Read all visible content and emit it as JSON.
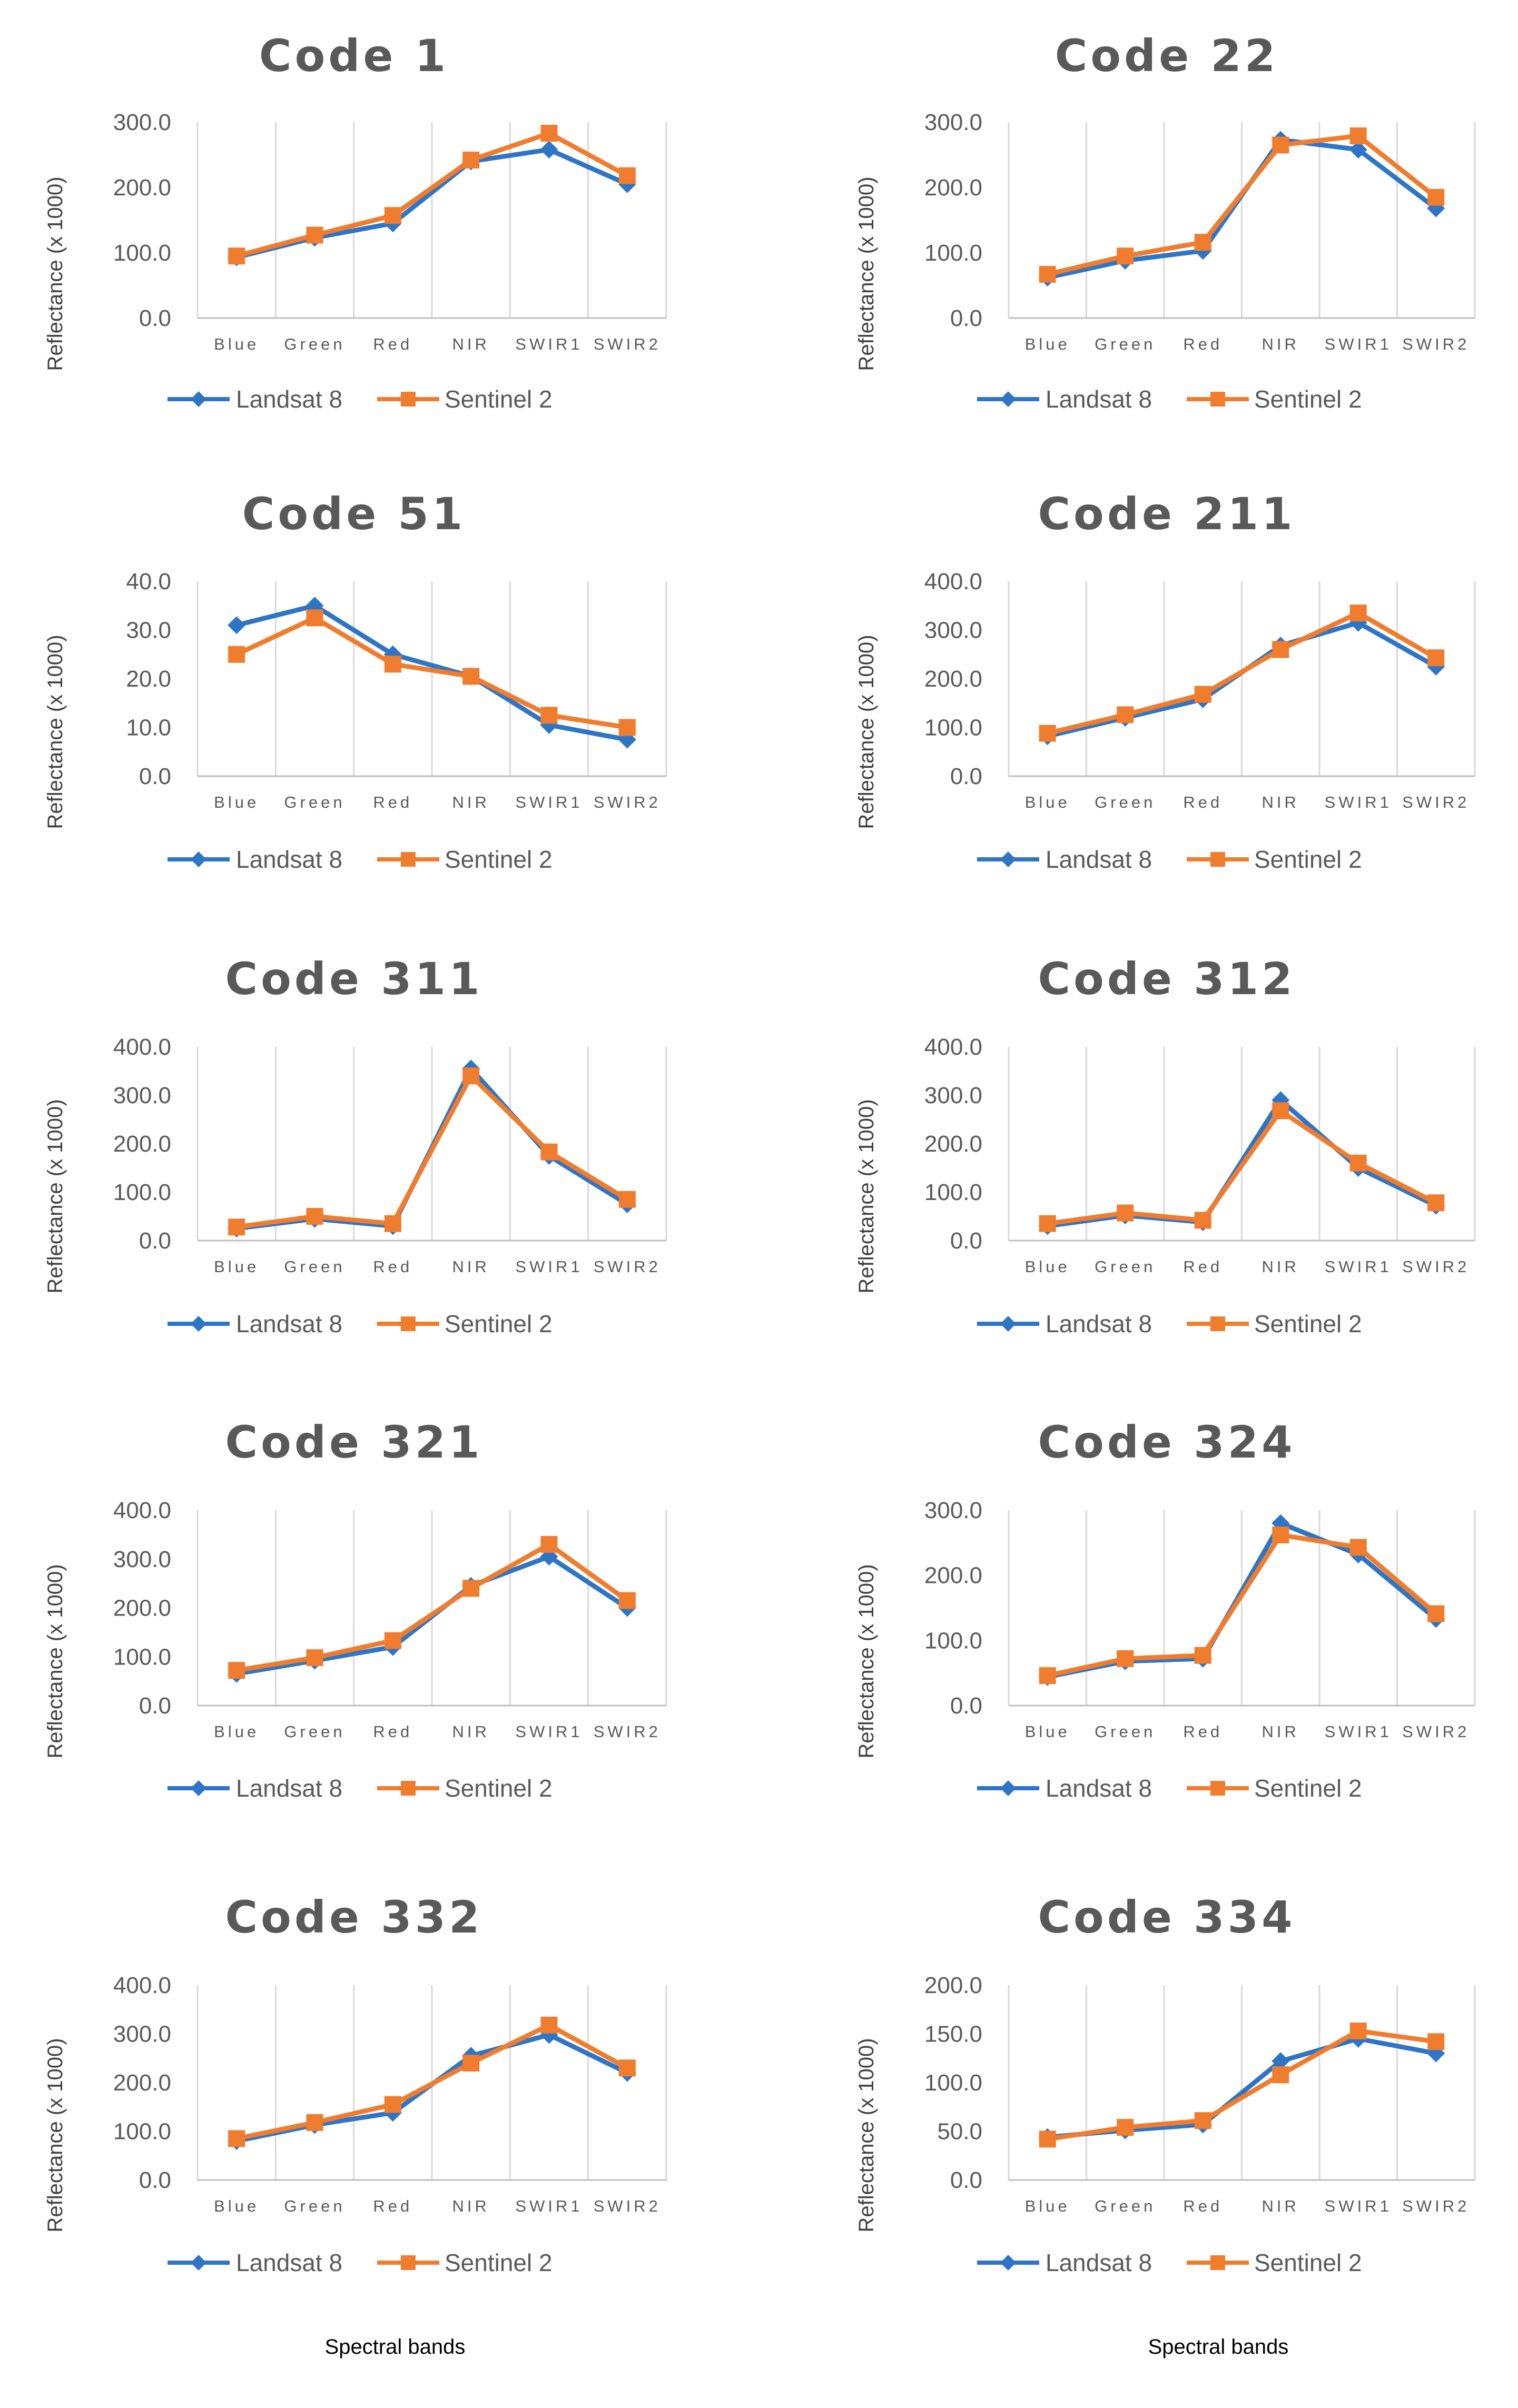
{
  "colors": {
    "landsat": "#2E75C6",
    "sentinel": "#F07C2E",
    "grid": "#D9D9D9",
    "axis": "#BFBFBF"
  },
  "xlabel": "Spectral bands",
  "legend": [
    "Landsat 8",
    "Sentinel 2"
  ],
  "chart_data": [
    {
      "type": "line",
      "title": "Code 1",
      "ylabel": "Reflectance (x 1000)",
      "categories": [
        "Blue",
        "Green",
        "Red",
        "NIR",
        "SWIR1",
        "SWIR2"
      ],
      "ylim": [
        0,
        300
      ],
      "yticks": [
        "0.0",
        "100.0",
        "200.0",
        "300.0"
      ],
      "series": [
        {
          "name": "Landsat 8",
          "values": [
            93,
            123,
            145,
            240,
            258,
            205
          ]
        },
        {
          "name": "Sentinel 2",
          "values": [
            95,
            127,
            157,
            242,
            283,
            218
          ]
        }
      ]
    },
    {
      "type": "line",
      "title": "Code 22",
      "ylabel": "Reflectance (x 1000)",
      "categories": [
        "Blue",
        "Green",
        "Red",
        "NIR",
        "SWIR1",
        "SWIR2"
      ],
      "ylim": [
        0,
        300
      ],
      "yticks": [
        "0.0",
        "100.0",
        "200.0",
        "300.0"
      ],
      "series": [
        {
          "name": "Landsat 8",
          "values": [
            62,
            88,
            103,
            273,
            258,
            168
          ]
        },
        {
          "name": "Sentinel 2",
          "values": [
            67,
            95,
            116,
            265,
            279,
            185
          ]
        }
      ]
    },
    {
      "type": "line",
      "title": "Code 51",
      "ylabel": "Reflectance (x 1000)",
      "categories": [
        "Blue",
        "Green",
        "Red",
        "NIR",
        "SWIR1",
        "SWIR2"
      ],
      "ylim": [
        0,
        40
      ],
      "yticks": [
        "0.0",
        "10.0",
        "20.0",
        "30.0",
        "40.0"
      ],
      "series": [
        {
          "name": "Landsat 8",
          "values": [
            31,
            35,
            25,
            20.5,
            10.5,
            7.5
          ]
        },
        {
          "name": "Sentinel 2",
          "values": [
            25,
            32.5,
            23,
            20.5,
            12.5,
            10
          ]
        }
      ]
    },
    {
      "type": "line",
      "title": "Code 211",
      "ylabel": "Reflectance (x 1000)",
      "categories": [
        "Blue",
        "Green",
        "Red",
        "NIR",
        "SWIR1",
        "SWIR2"
      ],
      "ylim": [
        0,
        400
      ],
      "yticks": [
        "0.0",
        "100.0",
        "200.0",
        "300.0",
        "400.0"
      ],
      "series": [
        {
          "name": "Landsat 8",
          "values": [
            82,
            120,
            158,
            268,
            315,
            225
          ]
        },
        {
          "name": "Sentinel 2",
          "values": [
            88,
            126,
            168,
            260,
            335,
            243
          ]
        }
      ]
    },
    {
      "type": "line",
      "title": "Code 311",
      "ylabel": "Reflectance (x 1000)",
      "categories": [
        "Blue",
        "Green",
        "Red",
        "NIR",
        "SWIR1",
        "SWIR2"
      ],
      "ylim": [
        0,
        400
      ],
      "yticks": [
        "0.0",
        "100.0",
        "200.0",
        "300.0",
        "400.0"
      ],
      "series": [
        {
          "name": "Landsat 8",
          "values": [
            25,
            45,
            30,
            355,
            175,
            75
          ]
        },
        {
          "name": "Sentinel 2",
          "values": [
            28,
            50,
            35,
            340,
            183,
            85
          ]
        }
      ]
    },
    {
      "type": "line",
      "title": "Code 312",
      "ylabel": "Reflectance (x 1000)",
      "categories": [
        "Blue",
        "Green",
        "Red",
        "NIR",
        "SWIR1",
        "SWIR2"
      ],
      "ylim": [
        0,
        400
      ],
      "yticks": [
        "0.0",
        "100.0",
        "200.0",
        "300.0",
        "400.0"
      ],
      "series": [
        {
          "name": "Landsat 8",
          "values": [
            30,
            52,
            38,
            290,
            150,
            72
          ]
        },
        {
          "name": "Sentinel 2",
          "values": [
            35,
            57,
            42,
            268,
            160,
            78
          ]
        }
      ]
    },
    {
      "type": "line",
      "title": "Code 321",
      "ylabel": "Reflectance (x 1000)",
      "categories": [
        "Blue",
        "Green",
        "Red",
        "NIR",
        "SWIR1",
        "SWIR2"
      ],
      "ylim": [
        0,
        400
      ],
      "yticks": [
        "0.0",
        "100.0",
        "200.0",
        "300.0",
        "400.0"
      ],
      "series": [
        {
          "name": "Landsat 8",
          "values": [
            65,
            92,
            120,
            245,
            305,
            200
          ]
        },
        {
          "name": "Sentinel 2",
          "values": [
            72,
            98,
            133,
            240,
            330,
            215
          ]
        }
      ]
    },
    {
      "type": "line",
      "title": "Code 324",
      "ylabel": "Reflectance (x 1000)",
      "categories": [
        "Blue",
        "Green",
        "Red",
        "NIR",
        "SWIR1",
        "SWIR2"
      ],
      "ylim": [
        0,
        300
      ],
      "yticks": [
        "0.0",
        "100.0",
        "200.0",
        "300.0"
      ],
      "series": [
        {
          "name": "Landsat 8",
          "values": [
            44,
            68,
            72,
            280,
            232,
            133
          ]
        },
        {
          "name": "Sentinel 2",
          "values": [
            46,
            72,
            77,
            262,
            243,
            141
          ]
        }
      ]
    },
    {
      "type": "line",
      "title": "Code 332",
      "ylabel": "Reflectance (x 1000)",
      "categories": [
        "Blue",
        "Green",
        "Red",
        "NIR",
        "SWIR1",
        "SWIR2"
      ],
      "ylim": [
        0,
        400
      ],
      "yticks": [
        "0.0",
        "100.0",
        "200.0",
        "300.0",
        "400.0"
      ],
      "series": [
        {
          "name": "Landsat 8",
          "values": [
            80,
            113,
            138,
            255,
            298,
            220
          ]
        },
        {
          "name": "Sentinel 2",
          "values": [
            85,
            118,
            155,
            240,
            318,
            230
          ]
        }
      ]
    },
    {
      "type": "line",
      "title": "Code 334",
      "ylabel": "Reflectance (x 1000)",
      "categories": [
        "Blue",
        "Green",
        "Red",
        "NIR",
        "SWIR1",
        "SWIR2"
      ],
      "ylim": [
        0,
        200
      ],
      "yticks": [
        "0.0",
        "50.0",
        "100.0",
        "150.0",
        "200.0"
      ],
      "series": [
        {
          "name": "Landsat 8",
          "values": [
            44,
            51,
            57,
            122,
            145,
            130
          ]
        },
        {
          "name": "Sentinel 2",
          "values": [
            42,
            54,
            61,
            108,
            153,
            142
          ]
        }
      ]
    }
  ]
}
